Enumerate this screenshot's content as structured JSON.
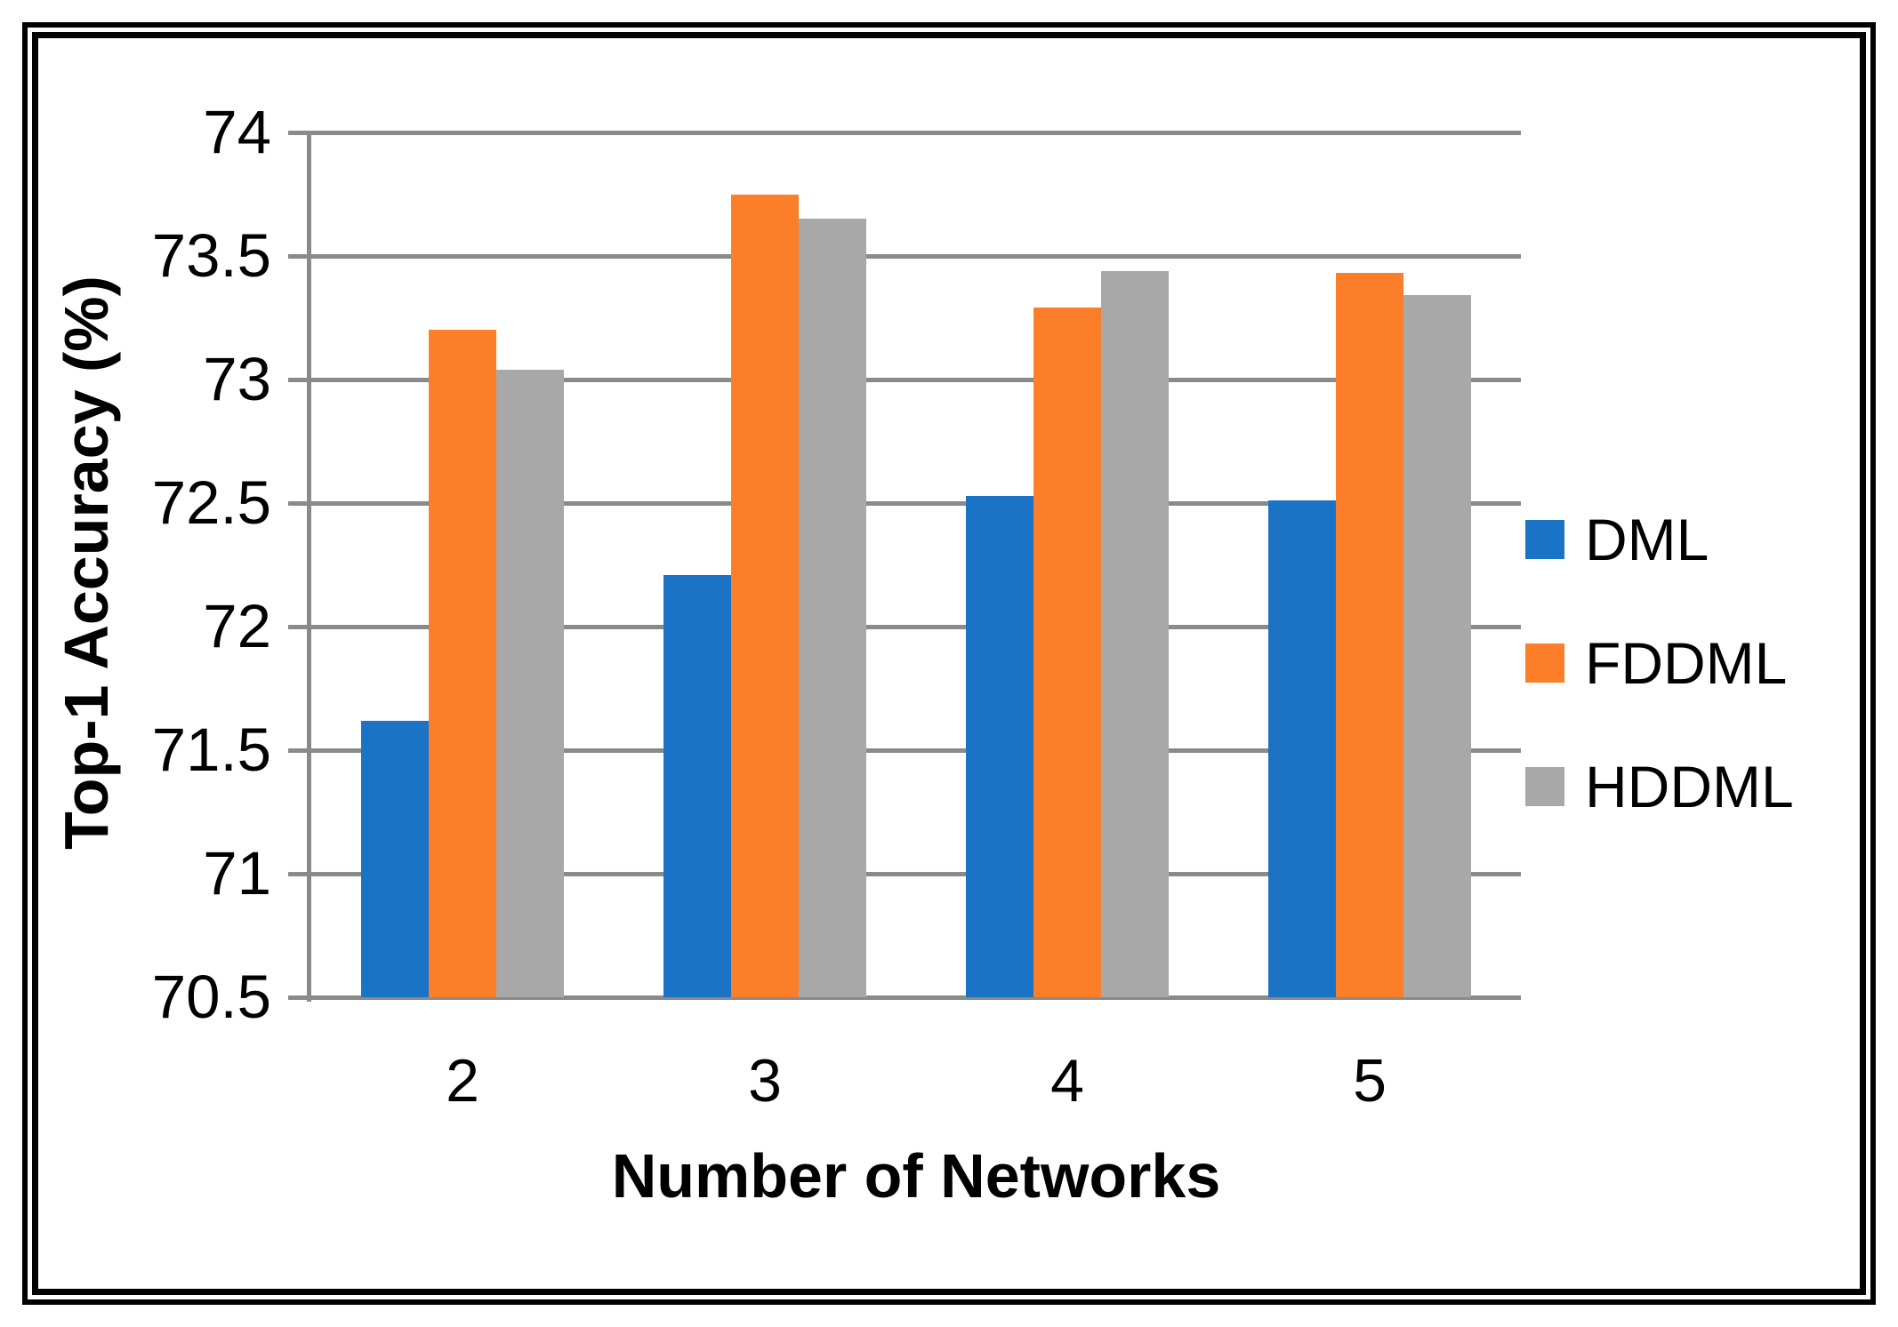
{
  "chart_data": {
    "type": "bar",
    "title": "",
    "xlabel": "Number of Networks",
    "ylabel": "Top-1 Accuracy (%)",
    "categories": [
      "2",
      "3",
      "4",
      "5"
    ],
    "series": [
      {
        "name": "DML",
        "color": "#1B73C6",
        "values": [
          71.62,
          72.21,
          72.53,
          72.51
        ]
      },
      {
        "name": "FDDML",
        "color": "#FD7E28",
        "values": [
          73.2,
          73.75,
          73.29,
          73.43
        ]
      },
      {
        "name": "HDDML",
        "color": "#A8A8A8",
        "values": [
          73.04,
          73.65,
          73.44,
          73.34
        ]
      }
    ],
    "ylim": [
      70.5,
      74
    ],
    "yticks": [
      74,
      73.5,
      73,
      72.5,
      72,
      71.5,
      71,
      70.5
    ],
    "ytick_labels": [
      "74",
      "73.5",
      "73",
      "72.5",
      "72",
      "71.5",
      "71",
      "70.5"
    ],
    "grid": true,
    "legend_position": "right"
  },
  "colors": {
    "gridline": "#8A8A8A",
    "axis": "#8A8A8A",
    "frame": "#000000",
    "text": "#000000",
    "background": "#FFFFFF"
  }
}
